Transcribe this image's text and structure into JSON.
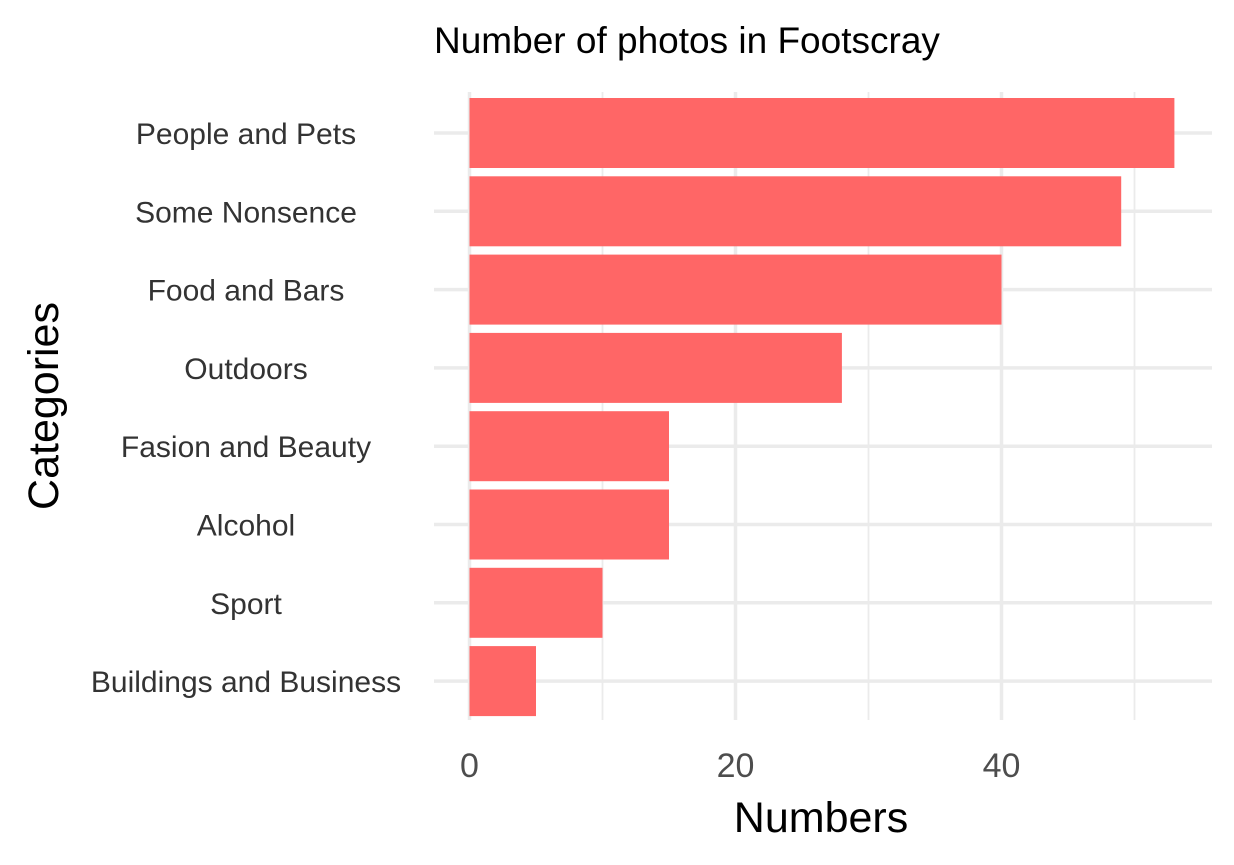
{
  "chart_data": {
    "type": "bar",
    "orientation": "horizontal",
    "title": "Number of photos in Footscray",
    "xlabel": "Numbers",
    "ylabel": "Categories",
    "categories": [
      "People and Pets",
      "Some Nonsence",
      "Food and Bars",
      "Outdoors",
      "Fasion and Beauty",
      "Alcohol",
      "Sport",
      "Buildings and Business"
    ],
    "values": [
      53,
      49,
      40,
      28,
      15,
      15,
      10,
      5
    ],
    "x_ticks": [
      "0",
      "20",
      "40"
    ],
    "xlim": [
      0,
      55
    ],
    "grid": true,
    "legend": "none",
    "bar_color": "#ff6666"
  }
}
